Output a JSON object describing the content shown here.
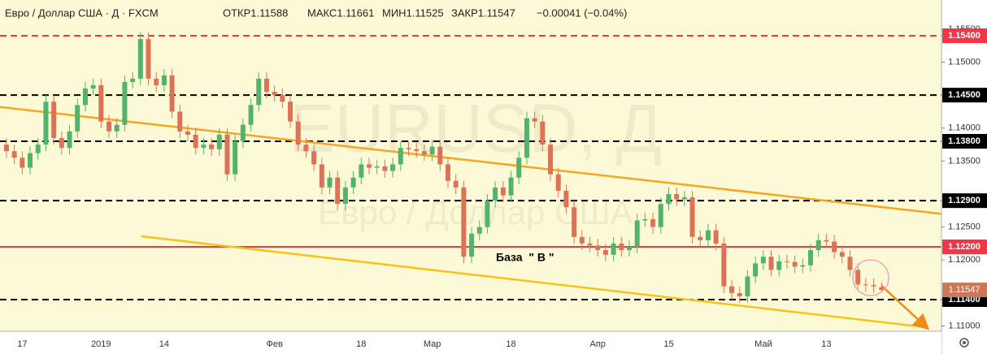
{
  "chart_data": {
    "type": "candlestick",
    "header": {
      "symbol": "Евро / Доллар США · Д · FXCM",
      "open_label": "ОТКР",
      "high_label": "МАКС",
      "low_label": "МИН",
      "close_label": "ЗАКР",
      "change": "−0.00041 (−0.04%)"
    },
    "watermark": {
      "ticker": "EURUSD, Д",
      "name": "Евро / Доллар США"
    },
    "annotation": "База  \" В \"",
    "categories": [
      null,
      null,
      "17",
      null,
      null,
      null,
      null,
      null,
      null,
      null,
      null,
      null,
      "2019",
      null,
      null,
      null,
      null,
      null,
      null,
      null,
      "14",
      null,
      null,
      null,
      null,
      null,
      null,
      null,
      null,
      null,
      null,
      null,
      null,
      null,
      "Фев",
      null,
      null,
      null,
      null,
      null,
      null,
      null,
      null,
      null,
      null,
      "18",
      null,
      null,
      null,
      null,
      null,
      null,
      null,
      null,
      "Мар",
      null,
      null,
      null,
      null,
      null,
      null,
      null,
      null,
      null,
      "18",
      null,
      null,
      null,
      null,
      null,
      null,
      null,
      null,
      null,
      null,
      "Апр",
      null,
      null,
      null,
      null,
      null,
      null,
      null,
      null,
      "15",
      null,
      null,
      null,
      null,
      null,
      null,
      null,
      null,
      null,
      null,
      null,
      "Май",
      null,
      null,
      null,
      null,
      null,
      null,
      null,
      "13",
      null,
      null,
      null,
      null,
      null,
      null,
      null
    ],
    "open": [
      1.1375,
      1.1365,
      1.1355,
      1.134,
      1.1362,
      1.1375,
      1.144,
      1.1385,
      1.137,
      1.1395,
      1.1435,
      1.146,
      1.1465,
      1.141,
      1.1395,
      1.1405,
      1.147,
      1.1475,
      1.1535,
      1.1475,
      1.1465,
      1.148,
      1.1425,
      1.1395,
      1.139,
      1.137,
      1.1375,
      1.1368,
      1.139,
      1.133,
      1.138,
      1.1405,
      1.1435,
      1.1475,
      1.1455,
      1.145,
      1.144,
      1.141,
      1.1375,
      1.1365,
      1.1345,
      1.131,
      1.1325,
      1.1285,
      1.131,
      1.1325,
      1.1345,
      1.134,
      1.1342,
      1.1335,
      1.1345,
      1.137,
      1.1368,
      1.1365,
      1.136,
      1.1372,
      1.1345,
      1.132,
      1.131,
      1.1205,
      1.124,
      1.125,
      1.129,
      1.131,
      1.1298,
      1.1325,
      1.1355,
      1.1415,
      1.141,
      1.1375,
      1.133,
      1.1305,
      1.128,
      1.1235,
      1.1225,
      1.1222,
      1.1215,
      1.1208,
      1.1225,
      1.1215,
      1.122,
      1.126,
      1.1262,
      1.125,
      1.1285,
      1.13,
      1.1292,
      1.1295,
      1.1235,
      1.123,
      1.1245,
      1.1225,
      1.116,
      1.115,
      1.1145,
      1.1175,
      1.1195,
      1.1205,
      1.1185,
      1.1198,
      1.1197,
      1.119,
      1.1192,
      1.1215,
      1.123,
      1.1228,
      1.1212,
      1.1205,
      1.1185,
      1.1163,
      1.1162,
      1.11588
    ],
    "high": [
      1.1385,
      1.1375,
      1.1365,
      1.1372,
      1.1385,
      1.145,
      1.145,
      1.1395,
      1.1405,
      1.1445,
      1.147,
      1.1475,
      1.1475,
      1.142,
      1.1415,
      1.148,
      1.1485,
      1.1545,
      1.1545,
      1.1485,
      1.149,
      1.149,
      1.1435,
      1.1405,
      1.14,
      1.1385,
      1.1385,
      1.14,
      1.14,
      1.139,
      1.1415,
      1.1445,
      1.1485,
      1.1485,
      1.1465,
      1.146,
      1.145,
      1.142,
      1.1385,
      1.1375,
      1.1355,
      1.1335,
      1.1335,
      1.132,
      1.1335,
      1.1355,
      1.1355,
      1.1352,
      1.1352,
      1.1355,
      1.138,
      1.138,
      1.1378,
      1.1375,
      1.1382,
      1.1382,
      1.1355,
      1.133,
      1.132,
      1.125,
      1.126,
      1.13,
      1.132,
      1.132,
      1.1335,
      1.1365,
      1.1425,
      1.1425,
      1.142,
      1.1385,
      1.134,
      1.1315,
      1.129,
      1.1245,
      1.1235,
      1.1232,
      1.1225,
      1.1235,
      1.1235,
      1.123,
      1.127,
      1.1272,
      1.1272,
      1.1295,
      1.131,
      1.131,
      1.1305,
      1.1305,
      1.1245,
      1.1255,
      1.1255,
      1.1235,
      1.117,
      1.116,
      1.1185,
      1.1205,
      1.1215,
      1.1215,
      1.1208,
      1.1208,
      1.1207,
      1.1202,
      1.1225,
      1.124,
      1.124,
      1.1238,
      1.1222,
      1.1215,
      1.1195,
      1.1173,
      1.1172,
      1.11661
    ],
    "low": [
      1.1355,
      1.1345,
      1.133,
      1.133,
      1.1352,
      1.1365,
      1.1375,
      1.136,
      1.136,
      1.1385,
      1.1425,
      1.145,
      1.14,
      1.1385,
      1.1385,
      1.1395,
      1.146,
      1.1465,
      1.1465,
      1.1455,
      1.1455,
      1.1415,
      1.1385,
      1.138,
      1.136,
      1.136,
      1.1358,
      1.1358,
      1.132,
      1.132,
      1.137,
      1.1395,
      1.1425,
      1.1445,
      1.144,
      1.143,
      1.14,
      1.1365,
      1.1355,
      1.1335,
      1.13,
      1.13,
      1.1275,
      1.1275,
      1.13,
      1.1315,
      1.133,
      1.133,
      1.1325,
      1.1325,
      1.1335,
      1.1358,
      1.1355,
      1.135,
      1.135,
      1.1335,
      1.131,
      1.13,
      1.1195,
      1.1195,
      1.123,
      1.124,
      1.128,
      1.1288,
      1.1288,
      1.1315,
      1.1345,
      1.14,
      1.1365,
      1.132,
      1.1295,
      1.127,
      1.1225,
      1.1215,
      1.1212,
      1.1205,
      1.1198,
      1.1198,
      1.1205,
      1.1205,
      1.121,
      1.125,
      1.124,
      1.124,
      1.1275,
      1.1282,
      1.1282,
      1.1225,
      1.122,
      1.122,
      1.1215,
      1.115,
      1.114,
      1.1135,
      1.1135,
      1.1165,
      1.1185,
      1.1175,
      1.1175,
      1.1187,
      1.118,
      1.118,
      1.1182,
      1.1205,
      1.1218,
      1.1202,
      1.1195,
      1.1175,
      1.1153,
      1.1152,
      1.115,
      1.11525
    ],
    "close": [
      1.1365,
      1.1355,
      1.134,
      1.1362,
      1.1375,
      1.144,
      1.1385,
      1.137,
      1.1395,
      1.1435,
      1.146,
      1.1465,
      1.141,
      1.1395,
      1.1405,
      1.147,
      1.1475,
      1.1535,
      1.1475,
      1.1465,
      1.148,
      1.1425,
      1.1395,
      1.139,
      1.137,
      1.1375,
      1.1368,
      1.139,
      1.133,
      1.138,
      1.1405,
      1.1435,
      1.1475,
      1.1455,
      1.145,
      1.144,
      1.141,
      1.1375,
      1.1365,
      1.1345,
      1.131,
      1.1325,
      1.1285,
      1.131,
      1.1325,
      1.1345,
      1.134,
      1.1342,
      1.1335,
      1.1345,
      1.137,
      1.1368,
      1.1365,
      1.136,
      1.1372,
      1.1345,
      1.132,
      1.131,
      1.1205,
      1.124,
      1.125,
      1.129,
      1.131,
      1.1298,
      1.1325,
      1.1355,
      1.1415,
      1.141,
      1.1375,
      1.133,
      1.1305,
      1.128,
      1.1235,
      1.1225,
      1.1222,
      1.1215,
      1.1208,
      1.1225,
      1.1215,
      1.122,
      1.126,
      1.1262,
      1.125,
      1.1285,
      1.13,
      1.1292,
      1.1295,
      1.1235,
      1.123,
      1.1245,
      1.1225,
      1.116,
      1.115,
      1.1145,
      1.1175,
      1.1195,
      1.1205,
      1.1185,
      1.1198,
      1.1197,
      1.119,
      1.1192,
      1.1215,
      1.123,
      1.1228,
      1.1212,
      1.1205,
      1.1185,
      1.1163,
      1.1162,
      1.116,
      1.11547
    ],
    "xlim": [
      -0.82,
      118.6
    ],
    "ylim": [
      1.1092,
      1.15942
    ],
    "yticks": [
      {
        "value": 1.155,
        "label": "1.15500"
      },
      {
        "value": 1.15,
        "label": "1.15000"
      },
      {
        "value": 1.14,
        "label": "1.14000"
      },
      {
        "value": 1.135,
        "label": "1.13500"
      },
      {
        "value": 1.125,
        "label": "1.12500"
      },
      {
        "value": 1.12,
        "label": "1.12000"
      },
      {
        "value": 1.11,
        "label": "1.11000"
      }
    ],
    "levels": [
      {
        "value": 1.154,
        "label": "1.15400",
        "color": "#f23645",
        "style": "dashed"
      },
      {
        "value": 1.145,
        "label": "1.14500",
        "color": "#000000",
        "style": "dashed"
      },
      {
        "value": 1.138,
        "label": "1.13800",
        "color": "#000000",
        "style": "dashed"
      },
      {
        "value": 1.129,
        "label": "1.12900",
        "color": "#000000",
        "style": "dashed"
      },
      {
        "value": 1.122,
        "label": "1.12200",
        "color": "#f23645",
        "style": "solid"
      },
      {
        "value": 1.114,
        "label": "1.11400",
        "color": "#000000",
        "style": "dashed"
      }
    ],
    "trendlines": [
      {
        "color": "#f5a623",
        "points": [
          [
            -0.82,
            1.1432
          ],
          [
            118.6,
            1.127
          ]
        ]
      },
      {
        "color": "#f7c21c",
        "points": [
          [
            17.1,
            1.1236
          ],
          [
            116.7,
            1.1098
          ]
        ]
      },
      {
        "color": "#f08a1c",
        "arrow": true,
        "points": [
          [
            111.0,
            1.1161
          ],
          [
            116.7,
            1.1098
          ]
        ]
      }
    ],
    "up_color": "#53b26c",
    "down_color": "#dd7356",
    "last_price_color": "#c9785a",
    "background": "#fcfad6"
  }
}
